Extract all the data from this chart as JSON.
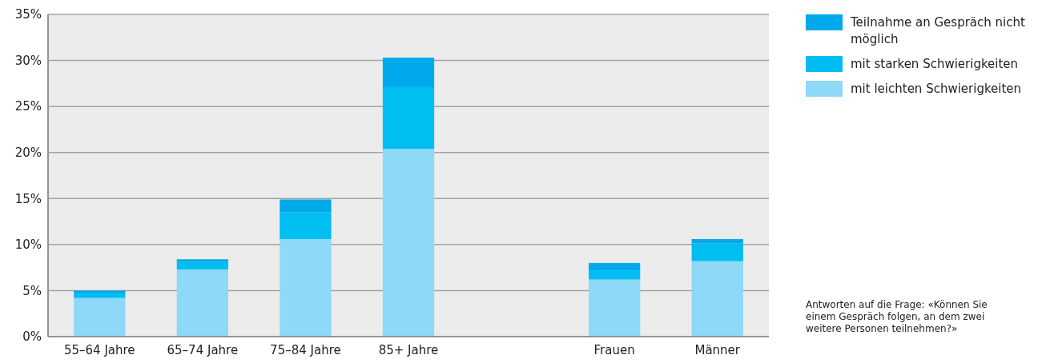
{
  "chart_data": {
    "type": "bar",
    "stacked": true,
    "categories": [
      "55–64 Jahre",
      "65–74 Jahre",
      "75–84 Jahre",
      "85+ Jahre",
      null,
      "Frauen",
      "Männer"
    ],
    "series": [
      {
        "name": "mit leichten Schwierigkeiten",
        "color": "#8ed8f8",
        "values": [
          4.2,
          7.3,
          10.6,
          20.4,
          null,
          6.2,
          8.2
        ]
      },
      {
        "name": "mit starken Schwierigkeiten",
        "color": "#00bdf2",
        "values": [
          0.5,
          0.8,
          2.9,
          6.7,
          null,
          1.0,
          1.9
        ]
      },
      {
        "name": "Teilnahme an Gespräch nicht möglich",
        "color": "#00a9ec",
        "values": [
          0.3,
          0.3,
          1.4,
          3.2,
          null,
          0.8,
          0.5
        ]
      }
    ],
    "ylim": [
      0,
      35
    ],
    "yticks": [
      {
        "value": 0,
        "label": "0%"
      },
      {
        "value": 5,
        "label": "5%"
      },
      {
        "value": 10,
        "label": "10%"
      },
      {
        "value": 15,
        "label": "15%"
      },
      {
        "value": 20,
        "label": "20%"
      },
      {
        "value": 25,
        "label": "25%"
      },
      {
        "value": 30,
        "label": "30%"
      },
      {
        "value": 35,
        "label": "35%"
      }
    ],
    "grid": "y",
    "legend": "top right",
    "annotations": [
      "Antworten auf die Frage: «Können Sie einem Gespräch folgen, an dem zwei weitere Personen teilnehmen?»"
    ]
  }
}
